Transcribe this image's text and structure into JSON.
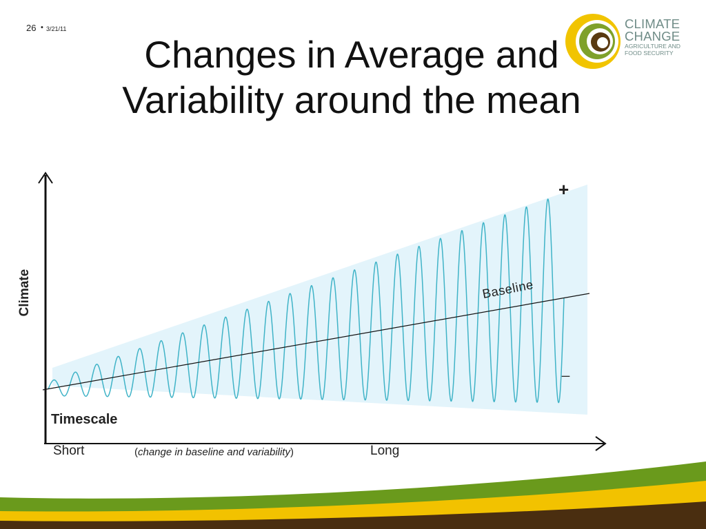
{
  "slide": {
    "number": "26",
    "separator": "•",
    "date": "3/21/11",
    "title_line1": "Changes in Average and",
    "title_line2": "Variability around the mean"
  },
  "logo": {
    "line1": "CLIMATE",
    "line2": "CHANGE",
    "line3": "AGRICULTURE AND",
    "line4": "FOOD SECURITY"
  },
  "diagram": {
    "y_axis_label": "Climate",
    "x_axis_title": "Timescale",
    "x_start_label": "Short",
    "x_note": "change in baseline and variability",
    "x_end_label": "Long",
    "baseline_label": "Baseline",
    "plus_label": "+",
    "minus_label": "_",
    "oscillation_cycles": 24
  },
  "colors": {
    "band_fill": "#e3f4fb",
    "wave": "#3fb3c7",
    "axis": "#111111",
    "logo_text": "#6f8c87",
    "logo_yellow": "#f1c400",
    "logo_green": "#7fa12a",
    "logo_brown": "#5a3a12",
    "footer_green": "#6a9a1c",
    "footer_yellow": "#f2c200",
    "footer_brown": "#4a2e10"
  }
}
